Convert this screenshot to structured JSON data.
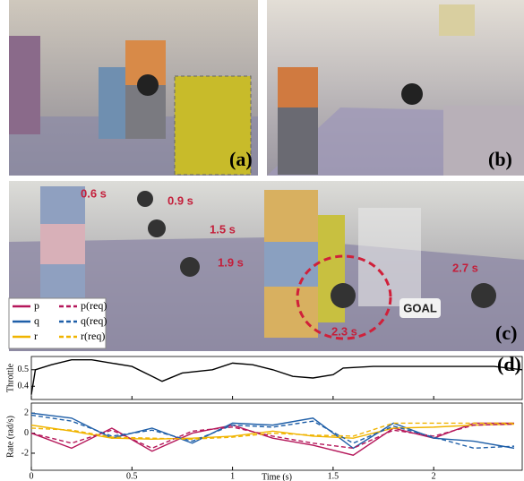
{
  "panels": {
    "a": {
      "label": "(a)"
    },
    "b": {
      "label": "(b)"
    },
    "c": {
      "label": "(c)",
      "times": [
        "0.6 s",
        "0.9 s",
        "1.5 s",
        "1.9 s",
        "2.3 s",
        "2.7 s"
      ],
      "goal": "GOAL"
    },
    "d": {
      "label": "(d)"
    }
  },
  "chart_data": [
    {
      "type": "line",
      "y_label": "Throttle",
      "x": [
        0,
        0.02,
        0.1,
        0.2,
        0.3,
        0.4,
        0.5,
        0.6,
        0.65,
        0.75,
        0.9,
        1.0,
        1.1,
        1.2,
        1.3,
        1.4,
        1.5,
        1.55,
        1.7,
        1.9,
        2.1,
        2.3,
        2.44
      ],
      "series": [
        {
          "name": null,
          "color": "#000000",
          "dashed": false,
          "values": [
            0.35,
            0.5,
            0.53,
            0.56,
            0.56,
            0.54,
            0.52,
            0.46,
            0.43,
            0.48,
            0.5,
            0.54,
            0.53,
            0.5,
            0.46,
            0.45,
            0.47,
            0.51,
            0.52,
            0.52,
            0.52,
            0.52,
            0.5
          ]
        }
      ],
      "xlim": [
        0,
        2.44
      ],
      "xticks": [
        0,
        0.5,
        1,
        1.5,
        2
      ],
      "ylim": [
        0.32,
        0.58
      ],
      "yticks": [
        0.4,
        0.5
      ]
    },
    {
      "type": "line",
      "y_label": "Rate (rad/s)",
      "x_label": "Time (s)",
      "x": [
        0,
        0.2,
        0.4,
        0.6,
        0.8,
        1.0,
        1.2,
        1.4,
        1.6,
        1.8,
        2.0,
        2.2,
        2.4
      ],
      "series": [
        {
          "name": "p",
          "color": "#b5175a",
          "dashed": false,
          "values": [
            0,
            -1.5,
            0.5,
            -1.8,
            0,
            0.8,
            -0.5,
            -1.2,
            -2.2,
            0.5,
            -0.5,
            1,
            1
          ]
        },
        {
          "name": "q",
          "color": "#1f5fa8",
          "dashed": false,
          "values": [
            2,
            1.5,
            -0.5,
            0.5,
            -1,
            1,
            0.8,
            1.5,
            -1.5,
            1,
            -0.5,
            -0.8,
            -1.5
          ]
        },
        {
          "name": "r",
          "color": "#f0b400",
          "dashed": false,
          "values": [
            0.8,
            0.2,
            -0.5,
            -0.6,
            -0.5,
            -0.3,
            0.2,
            -0.3,
            -0.5,
            0.5,
            0.6,
            0.8,
            0.9
          ]
        },
        {
          "name": "p(req)",
          "color": "#b5175a",
          "dashed": true,
          "values": [
            0,
            -1,
            0.3,
            -1.5,
            0.2,
            0.6,
            -0.3,
            -1,
            -1.5,
            0.3,
            -0.3,
            0.8,
            0.9
          ]
        },
        {
          "name": "q(req)",
          "color": "#1f5fa8",
          "dashed": true,
          "values": [
            1.8,
            1.2,
            -0.3,
            0.3,
            -0.8,
            0.8,
            0.6,
            1.2,
            -1,
            0.7,
            -0.4,
            -1.5,
            -1.3
          ]
        },
        {
          "name": "r(req)",
          "color": "#f0b400",
          "dashed": true,
          "values": [
            0.5,
            0.3,
            -0.4,
            -0.5,
            -0.6,
            -0.4,
            0,
            -0.2,
            -0.3,
            1,
            1,
            1,
            1
          ]
        }
      ],
      "xlim": [
        0,
        2.44
      ],
      "xticks": [
        0,
        0.5,
        1,
        1.5,
        2
      ],
      "ylim": [
        -3.7,
        3
      ],
      "yticks": [
        -2,
        0,
        2
      ]
    }
  ]
}
